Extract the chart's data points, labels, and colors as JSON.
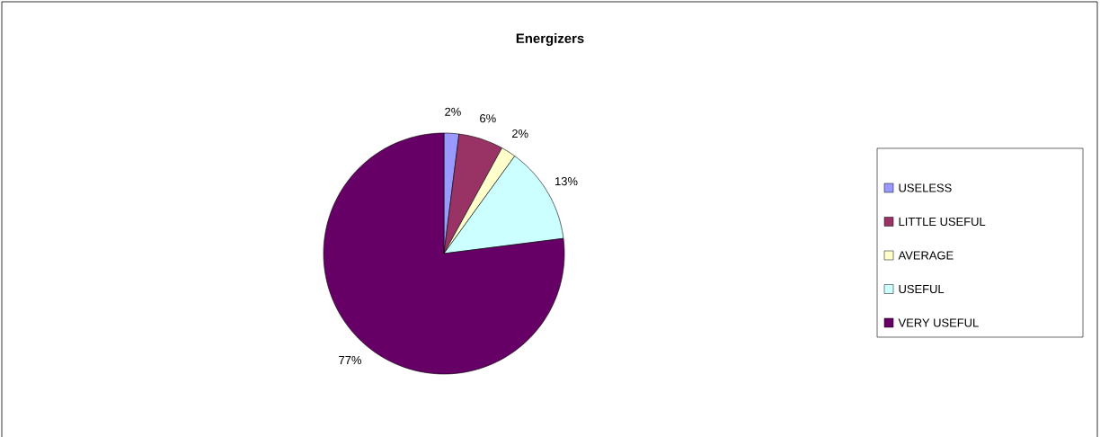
{
  "chart_data": {
    "type": "pie",
    "title": "Energizers",
    "categories": [
      "USELESS",
      "LITTLE USEFUL",
      "AVERAGE",
      "USEFUL",
      "VERY USEFUL"
    ],
    "values": [
      2,
      6,
      2,
      13,
      77
    ],
    "colors": [
      "#9999ff",
      "#993366",
      "#ffffcc",
      "#ccffff",
      "#660066"
    ],
    "value_labels": [
      "2%",
      "6%",
      "2%",
      "13%",
      "77%"
    ],
    "legend": "right"
  }
}
